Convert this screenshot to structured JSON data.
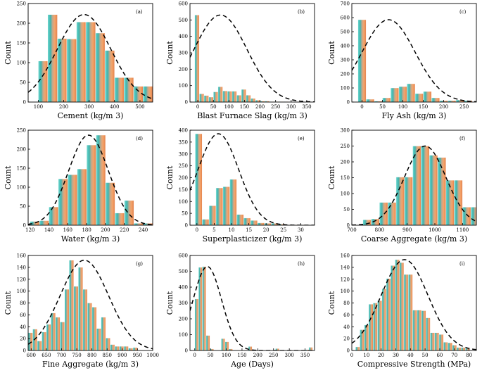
{
  "figure": {
    "description_label": "Histograms of concrete dataset variables"
  },
  "chart_data": [
    {
      "panel_label": "(a)",
      "type": "bar",
      "xlabel": "Cement (kg/m 3)",
      "ylabel": "Count",
      "xlim": [
        60,
        550
      ],
      "ylim": [
        0,
        250
      ],
      "xticks": [
        100,
        200,
        300,
        400,
        500
      ],
      "yticks": [
        0,
        50,
        100,
        150,
        200,
        250
      ],
      "bins": [
        [
          100,
          137,
          104
        ],
        [
          137,
          175,
          222
        ],
        [
          175,
          212,
          161
        ],
        [
          212,
          250,
          160
        ],
        [
          250,
          287,
          203
        ],
        [
          287,
          325,
          203
        ],
        [
          325,
          362,
          175
        ],
        [
          362,
          400,
          131
        ],
        [
          400,
          437,
          62
        ],
        [
          437,
          475,
          62
        ],
        [
          475,
          512,
          40
        ],
        [
          512,
          550,
          40
        ]
      ],
      "curve": {
        "mean": 280,
        "sd": 105,
        "peak": 222
      }
    },
    {
      "panel_label": "(b)",
      "type": "bar",
      "xlabel": "Blast Furnace Slag (kg/m 3)",
      "ylabel": "Count",
      "xlim": [
        -25,
        375
      ],
      "ylim": [
        0,
        600
      ],
      "xticks": [
        0,
        50,
        100,
        150,
        200,
        250,
        300,
        350
      ],
      "yticks": [
        0,
        100,
        200,
        300,
        400,
        500,
        600
      ],
      "bins": [
        [
          -10,
          5,
          530
        ],
        [
          5,
          20,
          50
        ],
        [
          20,
          35,
          40
        ],
        [
          35,
          50,
          30
        ],
        [
          50,
          65,
          62
        ],
        [
          65,
          80,
          93
        ],
        [
          80,
          95,
          68
        ],
        [
          95,
          110,
          66
        ],
        [
          110,
          125,
          66
        ],
        [
          125,
          140,
          42
        ],
        [
          140,
          155,
          77
        ],
        [
          155,
          170,
          42
        ],
        [
          170,
          185,
          22
        ],
        [
          185,
          200,
          12
        ],
        [
          200,
          215,
          6
        ],
        [
          215,
          230,
          6
        ],
        [
          230,
          245,
          3
        ],
        [
          245,
          260,
          3
        ],
        [
          260,
          275,
          3
        ],
        [
          275,
          290,
          3
        ]
      ],
      "curve": {
        "mean": 73,
        "sd": 85,
        "peak": 530
      }
    },
    {
      "panel_label": "(c)",
      "type": "bar",
      "xlabel": "Fly Ash (kg/m 3)",
      "ylabel": "Count",
      "xlim": [
        -25,
        280
      ],
      "ylim": [
        0,
        700
      ],
      "xticks": [
        0,
        50,
        100,
        150,
        200,
        250
      ],
      "yticks": [
        0,
        100,
        200,
        300,
        400,
        500,
        600,
        700
      ],
      "bins": [
        [
          -10,
          10,
          585
        ],
        [
          10,
          30,
          20
        ],
        [
          30,
          50,
          6
        ],
        [
          50,
          70,
          30
        ],
        [
          70,
          90,
          100
        ],
        [
          90,
          110,
          110
        ],
        [
          110,
          130,
          130
        ],
        [
          130,
          150,
          60
        ],
        [
          150,
          170,
          75
        ],
        [
          170,
          190,
          30
        ],
        [
          190,
          210,
          10
        ],
        [
          210,
          230,
          10
        ],
        [
          230,
          250,
          15
        ],
        [
          250,
          270,
          10
        ]
      ],
      "curve": {
        "mean": 65,
        "sd": 65,
        "peak": 585
      }
    },
    {
      "panel_label": "(d)",
      "type": "bar",
      "xlabel": "Water (kg/m 3)",
      "ylabel": "Count",
      "xlim": [
        118,
        250
      ],
      "ylim": [
        0,
        250
      ],
      "xticks": [
        120,
        140,
        160,
        180,
        200,
        220,
        240
      ],
      "yticks": [
        0,
        50,
        100,
        150,
        200,
        250
      ],
      "bins": [
        [
          120,
          130,
          10
        ],
        [
          130,
          140,
          12
        ],
        [
          140,
          150,
          48
        ],
        [
          150,
          160,
          122
        ],
        [
          160,
          170,
          133
        ],
        [
          170,
          180,
          148
        ],
        [
          180,
          190,
          211
        ],
        [
          190,
          200,
          237
        ],
        [
          200,
          210,
          112
        ],
        [
          210,
          220,
          32
        ],
        [
          220,
          230,
          65
        ],
        [
          230,
          240,
          5
        ],
        [
          240,
          250,
          5
        ]
      ],
      "curve": {
        "mean": 182,
        "sd": 21,
        "peak": 237
      }
    },
    {
      "panel_label": "(e)",
      "type": "bar",
      "xlabel": "Superplasticizer (kg/m 3)",
      "ylabel": "Count",
      "xlim": [
        -2,
        34
      ],
      "ylim": [
        0,
        400
      ],
      "xticks": [
        0,
        5,
        10,
        15,
        20,
        25,
        30
      ],
      "yticks": [
        0,
        50,
        100,
        150,
        200,
        250,
        300,
        350,
        400
      ],
      "bins": [
        [
          -0.5,
          1.5,
          385
        ],
        [
          1.5,
          3.5,
          25
        ],
        [
          3.5,
          5.5,
          82
        ],
        [
          5.5,
          7.5,
          157
        ],
        [
          7.5,
          9.5,
          162
        ],
        [
          9.5,
          11.5,
          193
        ],
        [
          11.5,
          13.5,
          45
        ],
        [
          13.5,
          15.5,
          30
        ],
        [
          15.5,
          17.5,
          20
        ],
        [
          17.5,
          19.5,
          10
        ],
        [
          19.5,
          21.5,
          8
        ],
        [
          21.5,
          23.5,
          8
        ],
        [
          23.5,
          25.5,
          5
        ],
        [
          25.5,
          27.5,
          2
        ],
        [
          27.5,
          29.5,
          2
        ],
        [
          29.5,
          31.5,
          2
        ]
      ],
      "curve": {
        "mean": 6.2,
        "sd": 5.9,
        "peak": 385
      }
    },
    {
      "panel_label": "(f)",
      "type": "bar",
      "xlabel": "Coarse Aggregate (kg/m 3)",
      "ylabel": "Count",
      "xlim": [
        700,
        1150
      ],
      "ylim": [
        0,
        300
      ],
      "xticks": [
        700,
        800,
        900,
        1000,
        1100
      ],
      "yticks": [
        0,
        50,
        100,
        150,
        200,
        250,
        300
      ],
      "bins": [
        [
          740,
          770,
          17
        ],
        [
          770,
          800,
          20
        ],
        [
          800,
          830,
          72
        ],
        [
          830,
          860,
          72
        ],
        [
          860,
          890,
          152
        ],
        [
          890,
          920,
          152
        ],
        [
          920,
          950,
          250
        ],
        [
          950,
          980,
          250
        ],
        [
          980,
          1010,
          221
        ],
        [
          1010,
          1040,
          214
        ],
        [
          1040,
          1070,
          142
        ],
        [
          1070,
          1100,
          142
        ],
        [
          1100,
          1130,
          57
        ],
        [
          1130,
          1160,
          57
        ]
      ],
      "curve": {
        "mean": 965,
        "sd": 75,
        "peak": 250
      }
    },
    {
      "panel_label": "(g)",
      "type": "bar",
      "xlabel": "Fine Aggregate (kg/m 3)",
      "ylabel": "Count",
      "xlim": [
        590,
        1000
      ],
      "ylim": [
        0,
        160
      ],
      "xticks": [
        600,
        650,
        700,
        750,
        800,
        850,
        900,
        950,
        1000
      ],
      "yticks": [
        0,
        20,
        40,
        60,
        80,
        100,
        120,
        140,
        160
      ],
      "bins": [
        [
          590,
          605,
          30
        ],
        [
          605,
          620,
          36
        ],
        [
          620,
          635,
          16
        ],
        [
          635,
          650,
          31
        ],
        [
          650,
          665,
          44
        ],
        [
          665,
          680,
          63
        ],
        [
          680,
          695,
          56
        ],
        [
          695,
          710,
          48
        ],
        [
          710,
          725,
          103
        ],
        [
          725,
          740,
          152
        ],
        [
          740,
          755,
          108
        ],
        [
          755,
          770,
          140
        ],
        [
          770,
          785,
          103
        ],
        [
          785,
          800,
          80
        ],
        [
          800,
          815,
          73
        ],
        [
          815,
          830,
          37
        ],
        [
          830,
          845,
          56
        ],
        [
          845,
          860,
          21
        ],
        [
          860,
          875,
          10
        ],
        [
          875,
          890,
          7
        ],
        [
          890,
          905,
          7
        ],
        [
          905,
          920,
          7
        ],
        [
          920,
          935,
          4
        ],
        [
          935,
          950,
          5
        ]
      ],
      "curve": {
        "mean": 775,
        "sd": 80,
        "peak": 152
      }
    },
    {
      "panel_label": "(h)",
      "type": "bar",
      "xlabel": "Age (Days)",
      "ylabel": "Count",
      "xlim": [
        -15,
        380
      ],
      "ylim": [
        0,
        600
      ],
      "xticks": [
        0,
        50,
        100,
        150,
        200,
        250,
        300,
        350
      ],
      "yticks": [
        0,
        100,
        200,
        300,
        400,
        500,
        600
      ],
      "bins": [
        [
          0,
          12,
          325
        ],
        [
          12,
          24,
          525
        ],
        [
          24,
          36,
          530
        ],
        [
          36,
          48,
          95
        ],
        [
          48,
          60,
          10
        ],
        [
          84,
          96,
          75
        ],
        [
          96,
          108,
          55
        ],
        [
          108,
          120,
          10
        ],
        [
          170,
          182,
          25
        ],
        [
          256,
          268,
          12
        ],
        [
          350,
          362,
          5
        ],
        [
          362,
          374,
          20
        ]
      ],
      "curve": {
        "mean": 40,
        "sd": 45,
        "peak": 530
      }
    },
    {
      "panel_label": "(i)",
      "type": "bar",
      "xlabel": "Compressive Strength (MPa)",
      "ylabel": "Count",
      "xlim": [
        0,
        85
      ],
      "ylim": [
        0,
        160
      ],
      "xticks": [
        0,
        10,
        20,
        30,
        40,
        50,
        60,
        70,
        80
      ],
      "yticks": [
        0,
        20,
        40,
        60,
        80,
        100,
        120,
        140,
        160
      ],
      "bins": [
        [
          2.5,
          5.5,
          6
        ],
        [
          5.5,
          8.5,
          35
        ],
        [
          8.5,
          11.5,
          43
        ],
        [
          11.5,
          14.5,
          78
        ],
        [
          14.5,
          17.5,
          80
        ],
        [
          17.5,
          20.5,
          84
        ],
        [
          20.5,
          23.5,
          104
        ],
        [
          23.5,
          26.5,
          121
        ],
        [
          26.5,
          29.5,
          143
        ],
        [
          29.5,
          32.5,
          153
        ],
        [
          32.5,
          35.5,
          148
        ],
        [
          35.5,
          38.5,
          128
        ],
        [
          38.5,
          41.5,
          128
        ],
        [
          41.5,
          44.5,
          68
        ],
        [
          44.5,
          47.5,
          68
        ],
        [
          47.5,
          50.5,
          67
        ],
        [
          50.5,
          53.5,
          55
        ],
        [
          53.5,
          56.5,
          30
        ],
        [
          56.5,
          59.5,
          30
        ],
        [
          59.5,
          62.5,
          27
        ],
        [
          62.5,
          65.5,
          14
        ],
        [
          65.5,
          68.5,
          13
        ],
        [
          68.5,
          71.5,
          9
        ],
        [
          71.5,
          74.5,
          5
        ],
        [
          74.5,
          77.5,
          5
        ],
        [
          77.5,
          80.5,
          4
        ]
      ],
      "curve": {
        "mean": 36,
        "sd": 16,
        "peak": 153
      }
    }
  ]
}
